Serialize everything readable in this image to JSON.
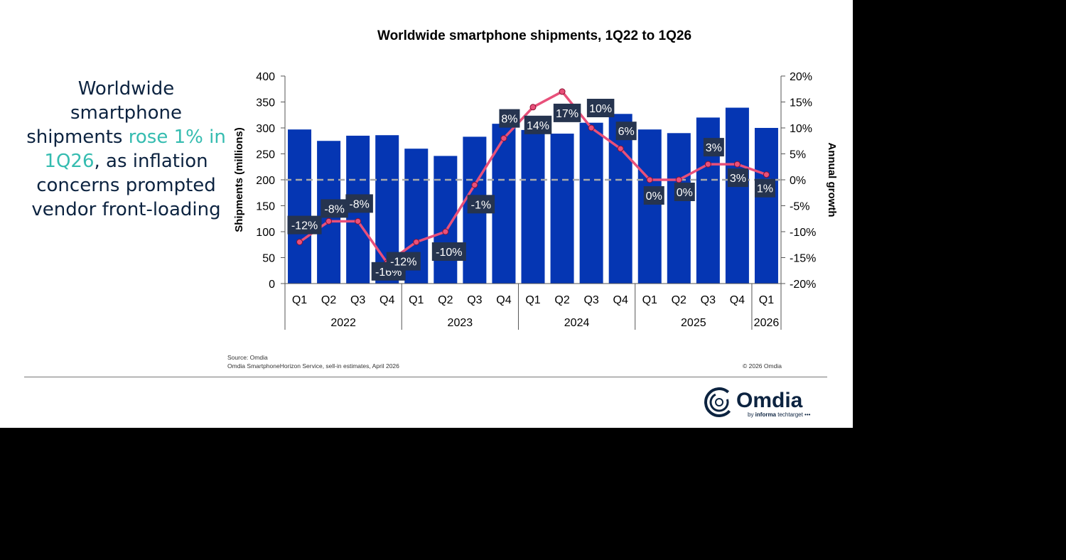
{
  "headline": {
    "pre": "Worldwide smartphone shipments ",
    "highlight": "rose 1% in 1Q26",
    "post": ", as inflation concerns prompted vendor front-loading"
  },
  "footer": {
    "source": "Source: Omdia",
    "note": "Omdia SmartphoneHorizon Service, sell-in estimates, April 2026",
    "copyright": "© 2026 Omdia"
  },
  "logo": {
    "name": "Omdia",
    "tagline_bold": "by informa",
    "tagline": "techtarget"
  },
  "colors": {
    "bar": "#0536b3",
    "line": "#e8507a",
    "label_bg": "#26344f",
    "headline": "#0c2340",
    "highlight": "#35bcb0"
  },
  "chart_data": {
    "type": "bar",
    "title": "Worldwide smartphone shipments, 1Q22 to 1Q26",
    "ylabel": "Shipments (millions)",
    "y2label": "Annual growth",
    "ylim": [
      0,
      400
    ],
    "y2lim": [
      -20,
      20
    ],
    "yticks": [
      "0",
      "50",
      "100",
      "150",
      "200",
      "250",
      "300",
      "350",
      "400"
    ],
    "y2ticks": [
      "-20%",
      "-15%",
      "-10%",
      "-5%",
      "0%",
      "5%",
      "10%",
      "15%",
      "20%"
    ],
    "categories": [
      "Q1",
      "Q2",
      "Q3",
      "Q4",
      "Q1",
      "Q2",
      "Q3",
      "Q4",
      "Q1",
      "Q2",
      "Q3",
      "Q4",
      "Q1",
      "Q2",
      "Q3",
      "Q4",
      "Q1"
    ],
    "years": [
      {
        "label": "2022",
        "count": 4
      },
      {
        "label": "2023",
        "count": 4
      },
      {
        "label": "2024",
        "count": 4
      },
      {
        "label": "2025",
        "count": 4
      },
      {
        "label": "2026",
        "count": 1
      }
    ],
    "series": [
      {
        "type": "bar",
        "axis": "left",
        "values": [
          297,
          275,
          285,
          286,
          260,
          246,
          283,
          308,
          296,
          289,
          310,
          327,
          297,
          290,
          320,
          339,
          300
        ]
      },
      {
        "type": "line",
        "axis": "right",
        "values": [
          -12,
          -8,
          -8,
          -16,
          -12,
          -10,
          -1,
          8,
          14,
          17,
          10,
          6,
          0,
          0,
          3,
          3,
          1
        ],
        "labels": [
          "-12%",
          "-8%",
          "-8%",
          "-16%",
          "-12%",
          "-10%",
          "-1%",
          "8%",
          "14%",
          "17%",
          "10%",
          "6%",
          "0%",
          "0%",
          "3%",
          "3%",
          "1%"
        ]
      }
    ],
    "reference_line": {
      "axis": "right",
      "value": 0,
      "style": "dashed"
    },
    "grid": false
  }
}
